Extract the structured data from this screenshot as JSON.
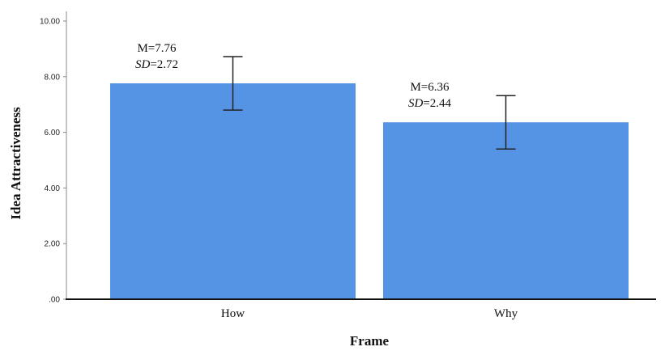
{
  "chart_data": {
    "type": "bar",
    "title": "",
    "xlabel": "Frame",
    "ylabel": "Idea Attractiveness",
    "categories": [
      "How",
      "Why"
    ],
    "values": [
      7.76,
      6.36
    ],
    "error_low": [
      6.8,
      5.4
    ],
    "error_high": [
      8.72,
      7.32
    ],
    "ylim": [
      0,
      10
    ],
    "yticks": [
      ".00",
      "2.00",
      "4.00",
      "6.00",
      "8.00",
      "10.00"
    ],
    "ytick_values": [
      0,
      2,
      4,
      6,
      8,
      10
    ],
    "annotations": [
      {
        "mean_text": "M=7.76",
        "sd_prefix": "SD",
        "sd_text": "=2.72"
      },
      {
        "mean_text": "M=6.36",
        "sd_prefix": "SD",
        "sd_text": "=2.44"
      }
    ],
    "bar_color": "#5593E4",
    "grid": false,
    "legend": "none"
  }
}
